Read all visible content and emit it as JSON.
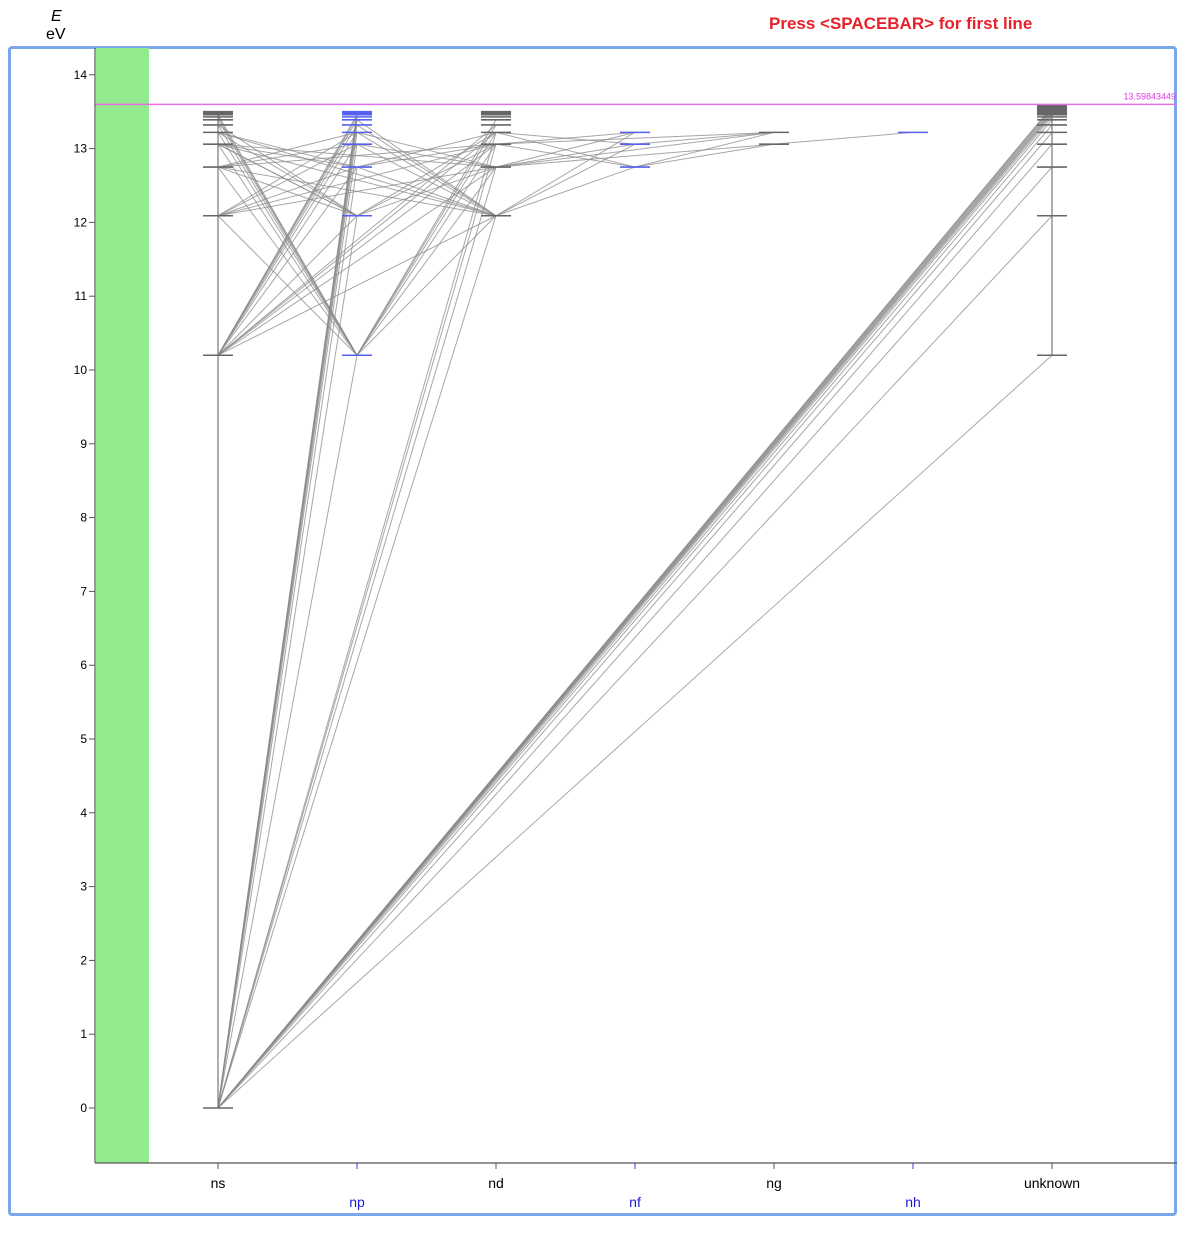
{
  "header": {
    "instruction": "Press <SPACEBAR> for first line",
    "y_symbol": "E",
    "y_unit": "eV"
  },
  "chart_data": {
    "type": "diagram",
    "ylim": [
      -0.75,
      14.35
    ],
    "yticks": [
      0,
      1,
      2,
      3,
      4,
      5,
      6,
      7,
      8,
      9,
      10,
      11,
      12,
      13,
      14
    ],
    "columns": [
      {
        "label": "ns",
        "row": 0,
        "color": "#000000"
      },
      {
        "label": "np",
        "row": 1,
        "color": "#1a1ad8"
      },
      {
        "label": "nd",
        "row": 0,
        "color": "#000000"
      },
      {
        "label": "nf",
        "row": 1,
        "color": "#1a1ad8"
      },
      {
        "label": "ng",
        "row": 0,
        "color": "#000000"
      },
      {
        "label": "nh",
        "row": 1,
        "color": "#1a1ad8"
      },
      {
        "label": "unknown",
        "row": 0,
        "color": "#000000"
      }
    ],
    "ionization_limit": {
      "value": 13.59843449,
      "label": "13.59843449"
    },
    "levels": {
      "ns": [
        0,
        10.2,
        12.09,
        12.75,
        13.06,
        13.22,
        13.32,
        13.39,
        13.43,
        13.46,
        13.48,
        13.5
      ],
      "np": [
        10.2,
        12.09,
        12.75,
        13.06,
        13.22,
        13.32,
        13.39,
        13.43,
        13.46,
        13.48,
        13.5
      ],
      "nd": [
        12.09,
        12.75,
        13.06,
        13.22,
        13.32,
        13.39,
        13.43,
        13.46,
        13.48,
        13.5
      ],
      "nf": [
        12.75,
        13.06,
        13.22
      ],
      "ng": [
        13.06,
        13.22
      ],
      "nh": [
        13.22
      ],
      "unknown": [
        10.2,
        12.09,
        12.75,
        13.06,
        13.22,
        13.32,
        13.39,
        13.43,
        13.46,
        13.48,
        13.5,
        13.52,
        13.54,
        13.56,
        13.57,
        13.58
      ]
    },
    "transitions": [
      [
        "ns",
        0,
        "np",
        10.2
      ],
      [
        "ns",
        0,
        "np",
        12.09
      ],
      [
        "ns",
        0,
        "np",
        12.75
      ],
      [
        "ns",
        0,
        "np",
        13.06
      ],
      [
        "ns",
        0,
        "np",
        13.22
      ],
      [
        "ns",
        0,
        "np",
        13.32
      ],
      [
        "ns",
        0,
        "np",
        13.39
      ],
      [
        "ns",
        0,
        "np",
        13.43
      ],
      [
        "ns",
        0,
        "np",
        13.46
      ],
      [
        "ns",
        0,
        "np",
        13.5
      ],
      [
        "ns",
        0,
        "nd",
        12.09
      ],
      [
        "ns",
        0,
        "nd",
        12.75
      ],
      [
        "ns",
        0,
        "nd",
        13.06
      ],
      [
        "ns",
        0,
        "nd",
        13.22
      ],
      [
        "ns",
        0,
        "unknown",
        10.2
      ],
      [
        "ns",
        0,
        "unknown",
        12.09
      ],
      [
        "ns",
        0,
        "unknown",
        12.75
      ],
      [
        "ns",
        0,
        "unknown",
        13.06
      ],
      [
        "ns",
        0,
        "unknown",
        13.22
      ],
      [
        "ns",
        0,
        "unknown",
        13.32
      ],
      [
        "ns",
        0,
        "unknown",
        13.39
      ],
      [
        "ns",
        0,
        "unknown",
        13.43
      ],
      [
        "ns",
        0,
        "unknown",
        13.46
      ],
      [
        "ns",
        0,
        "unknown",
        13.48
      ],
      [
        "ns",
        0,
        "unknown",
        13.5
      ],
      [
        "ns",
        0,
        "unknown",
        13.52
      ],
      [
        "ns",
        0,
        "unknown",
        13.54
      ],
      [
        "ns",
        0,
        "unknown",
        13.56
      ],
      [
        "ns",
        0,
        "unknown",
        13.57
      ],
      [
        "ns",
        10.2,
        "np",
        12.09
      ],
      [
        "ns",
        10.2,
        "np",
        12.75
      ],
      [
        "ns",
        10.2,
        "np",
        13.06
      ],
      [
        "ns",
        10.2,
        "np",
        13.22
      ],
      [
        "ns",
        10.2,
        "np",
        13.32
      ],
      [
        "ns",
        10.2,
        "np",
        13.39
      ],
      [
        "ns",
        10.2,
        "np",
        13.43
      ],
      [
        "ns",
        10.2,
        "np",
        13.46
      ],
      [
        "ns",
        10.2,
        "nd",
        12.09
      ],
      [
        "ns",
        10.2,
        "nd",
        12.75
      ],
      [
        "ns",
        10.2,
        "nd",
        13.06
      ],
      [
        "ns",
        10.2,
        "nd",
        13.22
      ],
      [
        "ns",
        10.2,
        "nd",
        13.32
      ],
      [
        "ns",
        12.09,
        "np",
        10.2
      ],
      [
        "ns",
        12.09,
        "np",
        12.75
      ],
      [
        "ns",
        12.09,
        "np",
        13.06
      ],
      [
        "ns",
        12.09,
        "np",
        13.22
      ],
      [
        "ns",
        12.09,
        "nd",
        12.75
      ],
      [
        "ns",
        12.09,
        "nd",
        13.06
      ],
      [
        "ns",
        12.75,
        "np",
        10.2
      ],
      [
        "ns",
        12.75,
        "np",
        12.09
      ],
      [
        "ns",
        12.75,
        "np",
        13.06
      ],
      [
        "ns",
        12.75,
        "np",
        13.22
      ],
      [
        "ns",
        12.75,
        "nd",
        12.09
      ],
      [
        "ns",
        12.75,
        "nd",
        13.06
      ],
      [
        "ns",
        13.06,
        "np",
        10.2
      ],
      [
        "ns",
        13.06,
        "np",
        12.09
      ],
      [
        "ns",
        13.06,
        "np",
        12.75
      ],
      [
        "ns",
        13.06,
        "nd",
        12.09
      ],
      [
        "ns",
        13.06,
        "nd",
        12.75
      ],
      [
        "ns",
        13.22,
        "np",
        10.2
      ],
      [
        "ns",
        13.22,
        "np",
        12.09
      ],
      [
        "ns",
        13.22,
        "np",
        12.75
      ],
      [
        "ns",
        13.22,
        "nd",
        12.09
      ],
      [
        "ns",
        13.32,
        "np",
        10.2
      ],
      [
        "ns",
        13.32,
        "np",
        12.09
      ],
      [
        "ns",
        13.39,
        "np",
        10.2
      ],
      [
        "ns",
        13.43,
        "np",
        10.2
      ],
      [
        "ns",
        13.46,
        "np",
        10.2
      ],
      [
        "np",
        10.2,
        "nd",
        12.09
      ],
      [
        "np",
        10.2,
        "nd",
        12.75
      ],
      [
        "np",
        10.2,
        "nd",
        13.06
      ],
      [
        "np",
        10.2,
        "nd",
        13.22
      ],
      [
        "np",
        10.2,
        "nd",
        13.32
      ],
      [
        "np",
        10.2,
        "nd",
        13.39
      ],
      [
        "np",
        12.09,
        "nd",
        12.75
      ],
      [
        "np",
        12.09,
        "nd",
        13.06
      ],
      [
        "np",
        12.09,
        "nd",
        13.22
      ],
      [
        "np",
        12.75,
        "nd",
        12.09
      ],
      [
        "np",
        12.75,
        "nd",
        13.06
      ],
      [
        "np",
        12.75,
        "nd",
        13.22
      ],
      [
        "np",
        13.06,
        "nd",
        12.09
      ],
      [
        "np",
        13.06,
        "nd",
        12.75
      ],
      [
        "np",
        13.22,
        "nd",
        12.09
      ],
      [
        "np",
        13.22,
        "nd",
        12.75
      ],
      [
        "np",
        13.32,
        "nd",
        12.09
      ],
      [
        "np",
        13.39,
        "nd",
        12.09
      ],
      [
        "np",
        12.09,
        "ns",
        13.06
      ],
      [
        "nd",
        12.09,
        "nf",
        12.75
      ],
      [
        "nd",
        12.09,
        "nf",
        13.06
      ],
      [
        "nd",
        12.09,
        "nf",
        13.22
      ],
      [
        "nd",
        12.75,
        "nf",
        13.06
      ],
      [
        "nd",
        12.75,
        "nf",
        13.22
      ],
      [
        "nd",
        13.06,
        "nf",
        12.75
      ],
      [
        "nd",
        13.06,
        "nf",
        13.22
      ],
      [
        "nd",
        13.22,
        "nf",
        12.75
      ],
      [
        "nd",
        13.22,
        "nf",
        13.06
      ],
      [
        "nd",
        12.75,
        "ng",
        13.06
      ],
      [
        "nd",
        12.75,
        "ng",
        13.22
      ],
      [
        "nd",
        13.06,
        "ng",
        13.22
      ],
      [
        "nf",
        12.75,
        "ng",
        13.06
      ],
      [
        "nf",
        13.06,
        "ng",
        13.22
      ],
      [
        "nf",
        12.75,
        "ng",
        13.22
      ],
      [
        "ng",
        13.06,
        "nh",
        13.22
      ]
    ]
  }
}
